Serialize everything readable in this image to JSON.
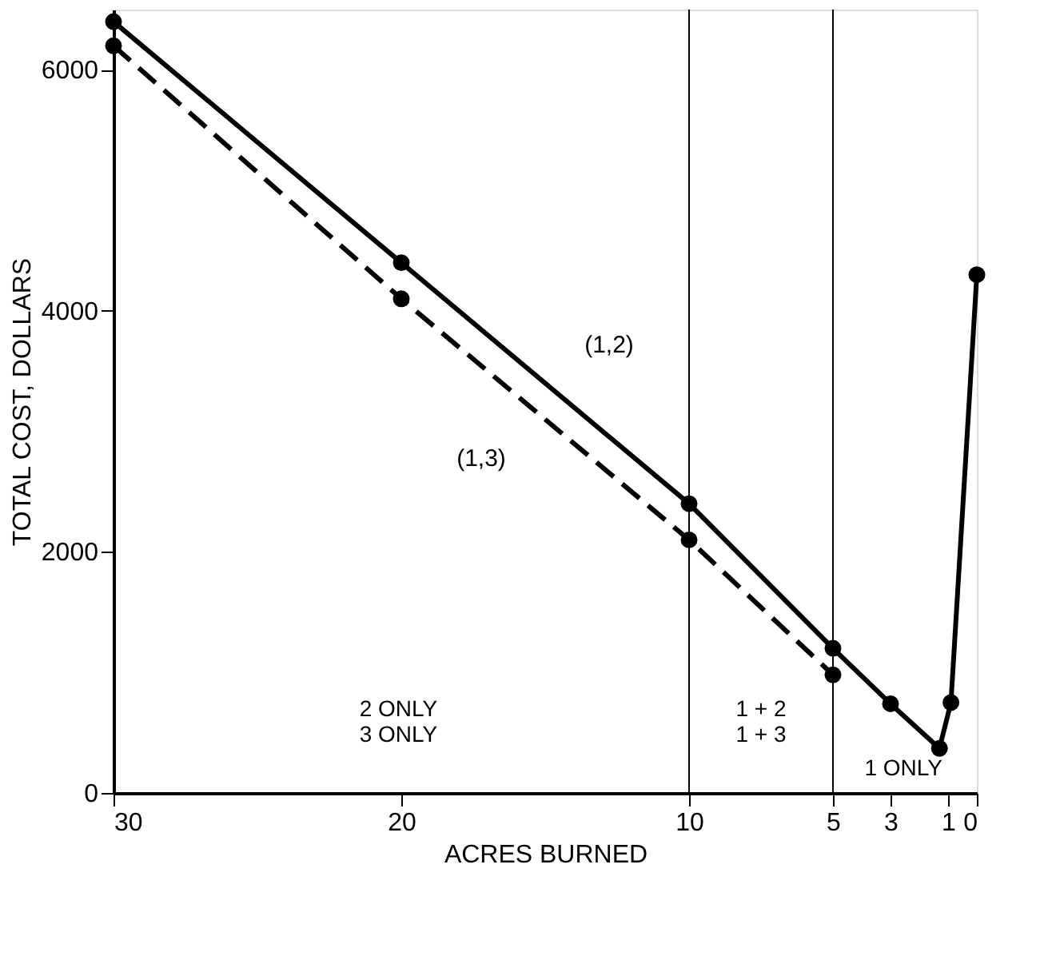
{
  "chart_data": {
    "type": "line",
    "xlabel": "ACRES  BURNED",
    "ylabel": "TOTAL  COST,  DOLLARS",
    "xlim": [
      30,
      0
    ],
    "xticks": [
      30,
      20,
      10,
      5,
      3,
      1,
      0
    ],
    "ylim": [
      0,
      6500
    ],
    "yticks": [
      0,
      2000,
      4000,
      6000
    ],
    "grid": false,
    "marker": "circle",
    "series": [
      {
        "name": "(1,2)",
        "color": "#000000",
        "line_style": "solid",
        "x": [
          30,
          20,
          10,
          5,
          3,
          1.3,
          0.9,
          0
        ],
        "values": [
          6400,
          4400,
          2400,
          1200,
          740,
          370,
          750,
          4300
        ]
      },
      {
        "name": "(1,3)",
        "color": "#000000",
        "line_style": "dashed",
        "x": [
          30,
          20,
          10,
          5
        ],
        "values": [
          6200,
          4100,
          2100,
          980
        ]
      }
    ],
    "ref_lines": [
      {
        "axis": "x",
        "value": 10,
        "color": "#000000"
      },
      {
        "axis": "x",
        "value": 5,
        "color": "#000000"
      }
    ],
    "annotations": [
      "2 ONLY\n3 ONLY",
      "1 + 2\n1 + 3",
      "1 ONLY"
    ]
  }
}
